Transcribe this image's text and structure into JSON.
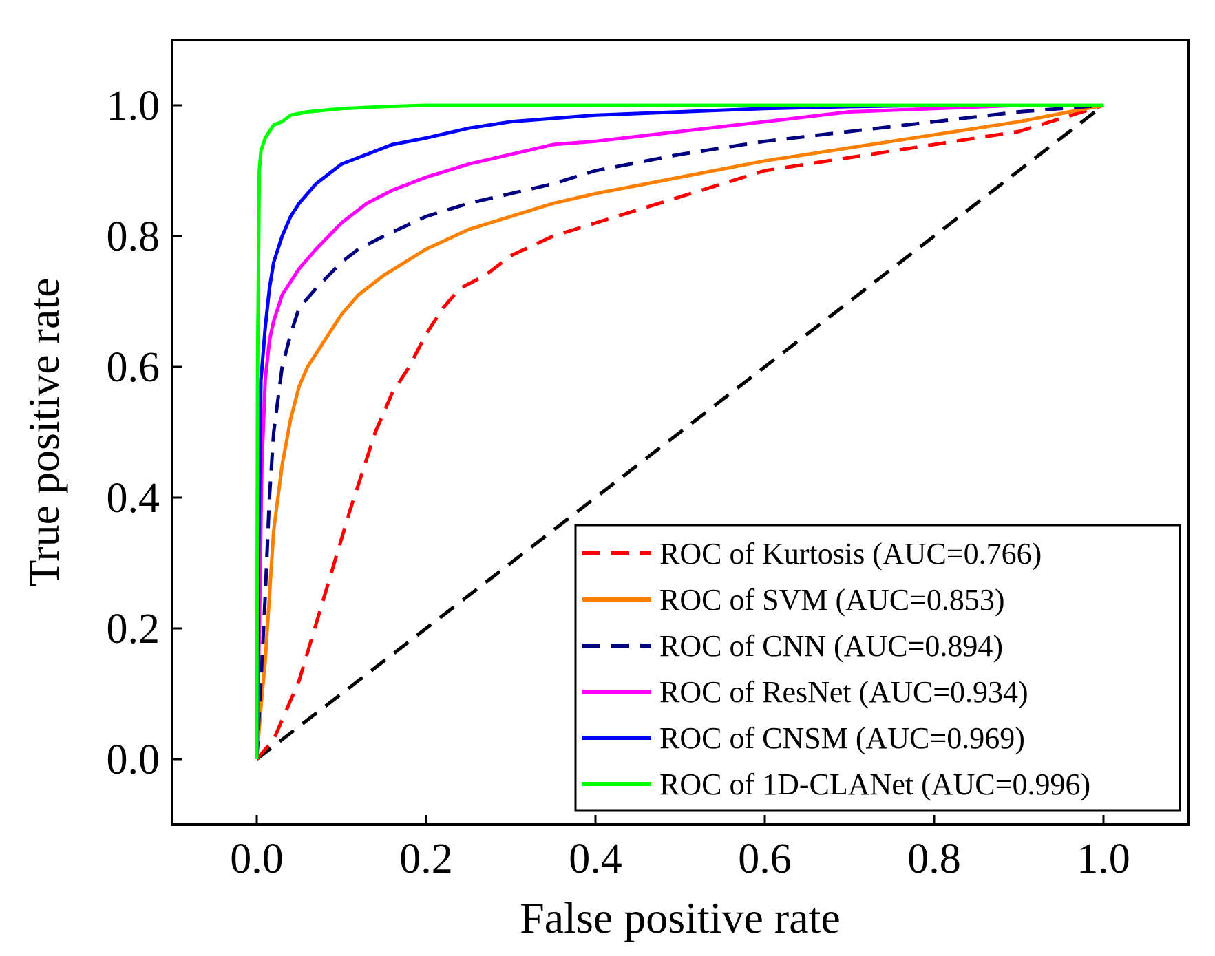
{
  "chart_data": {
    "type": "line",
    "title": "",
    "xlabel": "False positive rate",
    "ylabel": "True positive rate",
    "xlim": [
      -0.1,
      1.1
    ],
    "ylim": [
      -0.1,
      1.1
    ],
    "xticks": [
      0.0,
      0.2,
      0.4,
      0.6,
      0.8,
      1.0
    ],
    "xtick_labels": [
      "0.0",
      "0.2",
      "0.4",
      "0.6",
      "0.8",
      "1.0"
    ],
    "yticks": [
      0.0,
      0.2,
      0.4,
      0.6,
      0.8,
      1.0
    ],
    "ytick_labels": [
      "0.0",
      "0.2",
      "0.4",
      "0.6",
      "0.8",
      "1.0"
    ],
    "grid": false,
    "legend_position": "bottom-right",
    "series": [
      {
        "name": "ROC of Kurtosis (AUC=0.766)",
        "color": "#ff0000",
        "dash": "dashed",
        "x": [
          0.0,
          0.02,
          0.05,
          0.08,
          0.11,
          0.14,
          0.16,
          0.18,
          0.2,
          0.22,
          0.24,
          0.27,
          0.3,
          0.35,
          0.4,
          0.45,
          0.5,
          0.55,
          0.6,
          0.7,
          0.8,
          0.9,
          1.0
        ],
        "y": [
          0.0,
          0.03,
          0.12,
          0.25,
          0.38,
          0.5,
          0.56,
          0.6,
          0.65,
          0.69,
          0.72,
          0.74,
          0.77,
          0.8,
          0.82,
          0.84,
          0.86,
          0.88,
          0.9,
          0.92,
          0.94,
          0.96,
          1.0
        ]
      },
      {
        "name": "ROC of SVM (AUC=0.853)",
        "color": "#ff8000",
        "dash": "solid",
        "x": [
          0.0,
          0.005,
          0.01,
          0.015,
          0.02,
          0.03,
          0.04,
          0.05,
          0.06,
          0.08,
          0.1,
          0.12,
          0.15,
          0.2,
          0.25,
          0.3,
          0.35,
          0.4,
          0.5,
          0.6,
          0.7,
          0.8,
          0.9,
          1.0
        ],
        "y": [
          0.0,
          0.08,
          0.15,
          0.25,
          0.35,
          0.45,
          0.52,
          0.57,
          0.6,
          0.64,
          0.68,
          0.71,
          0.74,
          0.78,
          0.81,
          0.83,
          0.85,
          0.865,
          0.89,
          0.915,
          0.935,
          0.955,
          0.975,
          1.0
        ]
      },
      {
        "name": "ROC of CNN (AUC=0.894)",
        "color": "#000080",
        "dash": "dashed",
        "x": [
          0.0,
          0.005,
          0.01,
          0.015,
          0.02,
          0.03,
          0.04,
          0.05,
          0.07,
          0.1,
          0.12,
          0.15,
          0.2,
          0.25,
          0.3,
          0.35,
          0.4,
          0.5,
          0.6,
          0.7,
          0.8,
          0.9,
          1.0
        ],
        "y": [
          0.0,
          0.12,
          0.25,
          0.4,
          0.5,
          0.6,
          0.65,
          0.69,
          0.72,
          0.76,
          0.78,
          0.8,
          0.83,
          0.85,
          0.865,
          0.88,
          0.9,
          0.925,
          0.945,
          0.96,
          0.975,
          0.99,
          1.0
        ]
      },
      {
        "name": "ROC of ResNet (AUC=0.934)",
        "color": "#ff00ff",
        "dash": "solid",
        "x": [
          0.0,
          0.003,
          0.006,
          0.01,
          0.015,
          0.02,
          0.03,
          0.05,
          0.07,
          0.1,
          0.13,
          0.16,
          0.2,
          0.25,
          0.3,
          0.35,
          0.4,
          0.5,
          0.6,
          0.7,
          0.8,
          0.9,
          1.0
        ],
        "y": [
          0.0,
          0.2,
          0.45,
          0.58,
          0.64,
          0.67,
          0.71,
          0.75,
          0.78,
          0.82,
          0.85,
          0.87,
          0.89,
          0.91,
          0.925,
          0.94,
          0.945,
          0.96,
          0.975,
          0.99,
          0.995,
          1.0,
          1.0
        ]
      },
      {
        "name": "ROC of CNSM (AUC=0.969)",
        "color": "#0000ff",
        "dash": "solid",
        "x": [
          0.0,
          0.002,
          0.005,
          0.01,
          0.015,
          0.02,
          0.03,
          0.04,
          0.05,
          0.07,
          0.1,
          0.13,
          0.16,
          0.2,
          0.25,
          0.3,
          0.35,
          0.4,
          0.5,
          0.6,
          0.7,
          0.8,
          0.9,
          1.0
        ],
        "y": [
          0.0,
          0.3,
          0.58,
          0.66,
          0.72,
          0.76,
          0.8,
          0.83,
          0.85,
          0.88,
          0.91,
          0.925,
          0.94,
          0.95,
          0.965,
          0.975,
          0.98,
          0.985,
          0.99,
          0.995,
          0.998,
          1.0,
          1.0,
          1.0
        ]
      },
      {
        "name": "ROC of 1D-CLANet (AUC=0.996)",
        "color": "#00ff00",
        "dash": "solid",
        "x": [
          0.0,
          0.001,
          0.003,
          0.005,
          0.01,
          0.015,
          0.02,
          0.03,
          0.04,
          0.06,
          0.1,
          0.15,
          0.2,
          0.3,
          0.5,
          1.0
        ],
        "y": [
          0.0,
          0.6,
          0.9,
          0.93,
          0.95,
          0.96,
          0.97,
          0.975,
          0.985,
          0.99,
          0.995,
          0.998,
          1.0,
          1.0,
          1.0,
          1.0
        ]
      },
      {
        "name": "",
        "color": "#000000",
        "dash": "dashed",
        "x": [
          0.0,
          1.0
        ],
        "y": [
          0.0,
          1.0
        ]
      }
    ]
  }
}
